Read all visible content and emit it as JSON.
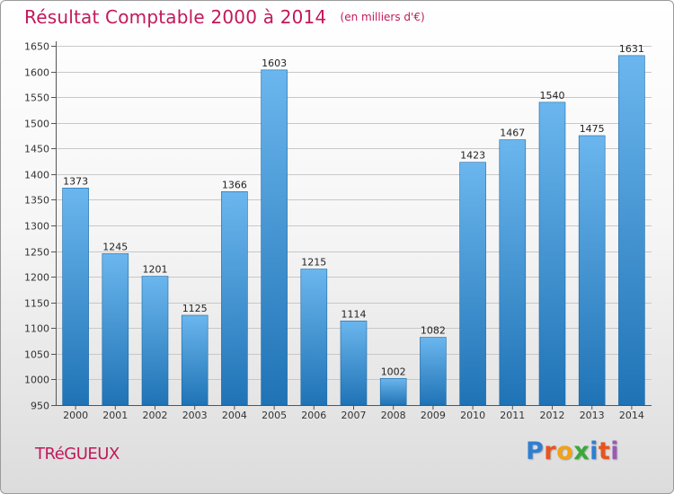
{
  "page": {
    "title": "Résultat Comptable 2000 à 2014",
    "subtitle": "(en milliers d'€)",
    "commune": "TRéGUEUX"
  },
  "logo": {
    "letters": [
      {
        "char": "P",
        "color": "#2e7fd2"
      },
      {
        "char": "r",
        "color": "#e8541e"
      },
      {
        "char": "o",
        "color": "#f2a21a"
      },
      {
        "char": "x",
        "color": "#3aa83a"
      },
      {
        "char": "i",
        "color": "#2e7fd2"
      },
      {
        "char": "t",
        "color": "#e8541e"
      },
      {
        "char": "i",
        "color": "#9b59b6"
      }
    ]
  },
  "colors": {
    "title": "#c2185b",
    "bar_light": "#6bb6ee",
    "bar_dark": "#1f73b5",
    "grid": "#c8c8c8",
    "axis": "#555555"
  },
  "chart_data": {
    "type": "bar",
    "title": "Résultat Comptable 2000 à 2014",
    "xlabel": "",
    "ylabel": "",
    "categories": [
      "2000",
      "2001",
      "2002",
      "2003",
      "2004",
      "2005",
      "2006",
      "2007",
      "2008",
      "2009",
      "2010",
      "2011",
      "2012",
      "2013",
      "2014"
    ],
    "values": [
      1373,
      1245,
      1201,
      1125,
      1366,
      1603,
      1215,
      1114,
      1002,
      1082,
      1423,
      1467,
      1540,
      1475,
      1631
    ],
    "ylim": [
      950,
      1650
    ],
    "yticks": [
      950,
      1000,
      1050,
      1100,
      1150,
      1200,
      1250,
      1300,
      1350,
      1400,
      1450,
      1500,
      1550,
      1600,
      1650
    ],
    "grid": true
  }
}
